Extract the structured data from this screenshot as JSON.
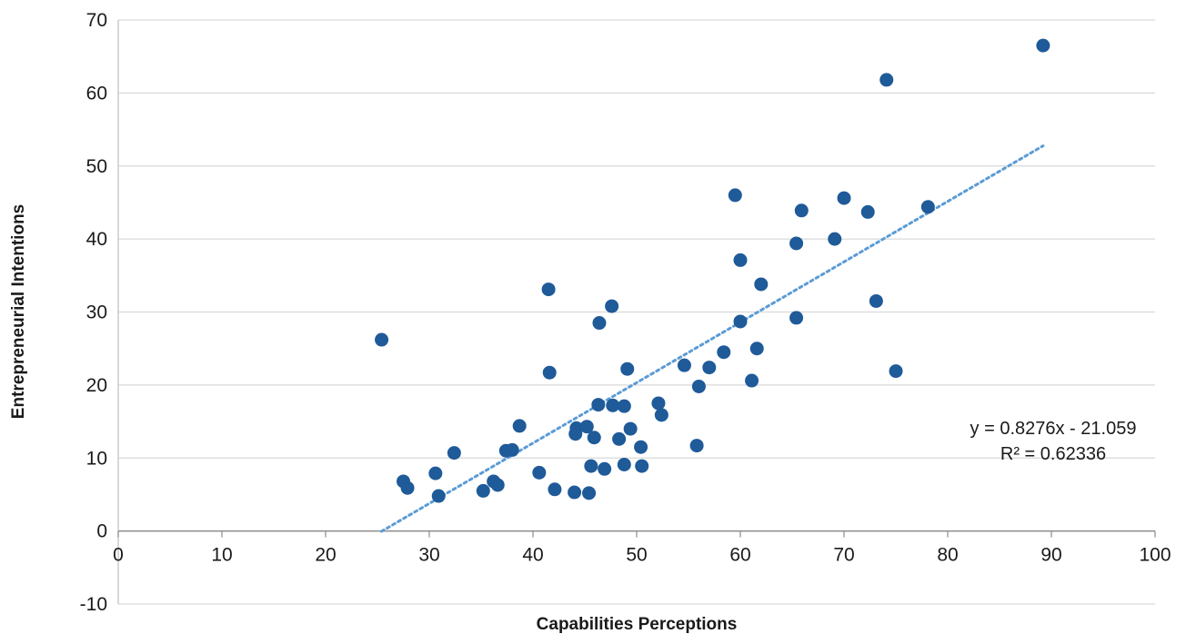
{
  "chart_data": {
    "type": "scatter",
    "xlabel": "Capabilities Perceptions",
    "ylabel": "Entrepreneurial Intentions",
    "xlim": [
      0,
      100
    ],
    "ylim": [
      -10,
      70
    ],
    "xticks": [
      0,
      10,
      20,
      30,
      40,
      50,
      60,
      70,
      80,
      90,
      100
    ],
    "yticks": [
      -10,
      0,
      10,
      20,
      30,
      40,
      50,
      60,
      70
    ],
    "grid": "horizontal",
    "point_color": "#1f5a99",
    "trend_color": "#5b9bd5",
    "trendline": {
      "slope": 0.8276,
      "intercept": -21.059,
      "x_range": [
        25.4,
        89.2
      ],
      "equation_label": "y = 0.8276x - 21.059",
      "r2_label": "R² = 0.62336"
    },
    "points": [
      [
        25.4,
        26.2
      ],
      [
        27.5,
        6.8
      ],
      [
        27.9,
        5.9
      ],
      [
        30.6,
        7.9
      ],
      [
        30.9,
        4.8
      ],
      [
        32.4,
        10.7
      ],
      [
        35.2,
        5.5
      ],
      [
        36.2,
        6.8
      ],
      [
        36.6,
        6.3
      ],
      [
        37.4,
        11.0
      ],
      [
        38.0,
        11.1
      ],
      [
        38.7,
        14.4
      ],
      [
        40.6,
        8.0
      ],
      [
        41.5,
        33.1
      ],
      [
        41.6,
        21.7
      ],
      [
        42.1,
        5.7
      ],
      [
        44.0,
        5.3
      ],
      [
        44.1,
        13.3
      ],
      [
        44.2,
        14.1
      ],
      [
        45.2,
        14.3
      ],
      [
        45.4,
        5.2
      ],
      [
        45.6,
        8.9
      ],
      [
        45.9,
        12.8
      ],
      [
        46.3,
        17.3
      ],
      [
        46.4,
        28.5
      ],
      [
        46.9,
        8.5
      ],
      [
        47.6,
        30.8
      ],
      [
        47.7,
        17.2
      ],
      [
        48.3,
        12.6
      ],
      [
        48.8,
        17.1
      ],
      [
        48.8,
        9.1
      ],
      [
        49.1,
        22.2
      ],
      [
        49.4,
        14.0
      ],
      [
        50.4,
        11.5
      ],
      [
        50.5,
        8.9
      ],
      [
        52.1,
        17.5
      ],
      [
        52.4,
        15.9
      ],
      [
        54.6,
        22.7
      ],
      [
        55.8,
        11.7
      ],
      [
        56.0,
        19.8
      ],
      [
        57.0,
        22.4
      ],
      [
        58.4,
        24.5
      ],
      [
        59.5,
        46.0
      ],
      [
        60.0,
        37.1
      ],
      [
        60.0,
        28.7
      ],
      [
        61.1,
        20.6
      ],
      [
        61.6,
        25.0
      ],
      [
        62.0,
        33.8
      ],
      [
        65.4,
        39.4
      ],
      [
        65.4,
        29.2
      ],
      [
        65.9,
        43.9
      ],
      [
        69.1,
        40.0
      ],
      [
        70.0,
        45.6
      ],
      [
        72.3,
        43.7
      ],
      [
        73.1,
        31.5
      ],
      [
        74.1,
        61.8
      ],
      [
        75.0,
        21.9
      ],
      [
        78.1,
        44.4
      ],
      [
        89.2,
        66.5
      ]
    ]
  }
}
